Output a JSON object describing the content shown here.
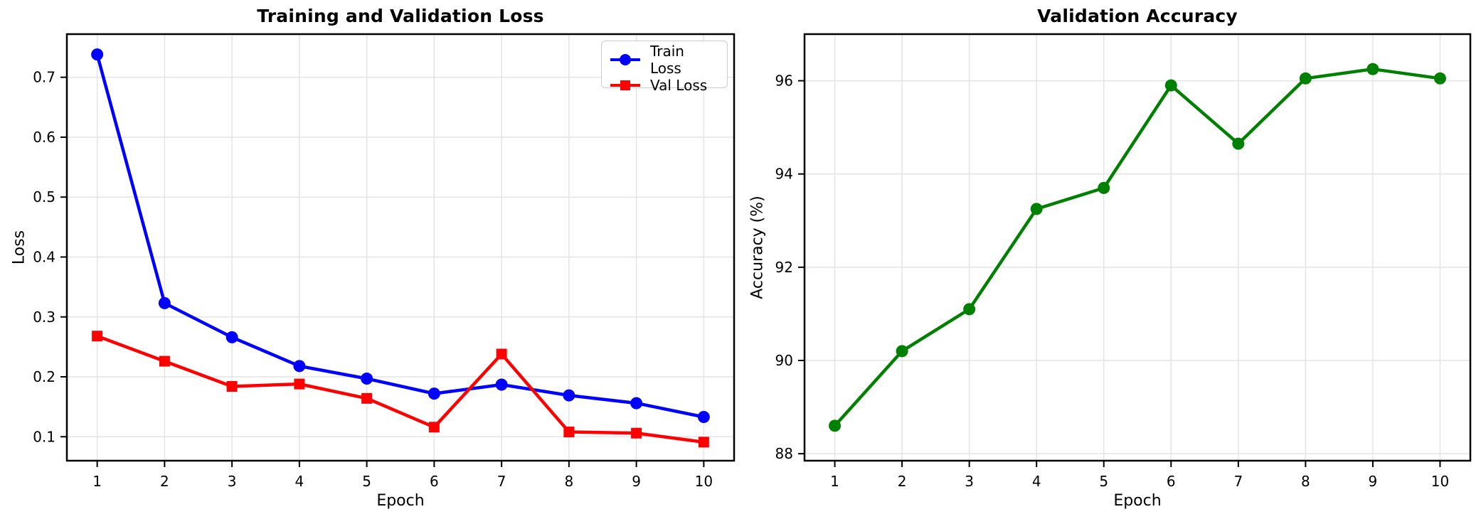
{
  "figure": {
    "background": "#ffffff",
    "spine_color": "#000000",
    "grid_color": "#e4e4e4",
    "tick_label_color": "#000000"
  },
  "legend": {
    "position": "upper right",
    "items": [
      {
        "label": "Train Loss",
        "color": "#0000ff",
        "marker": "circle"
      },
      {
        "label": "Val Loss",
        "color": "#ff0000",
        "marker": "square"
      }
    ]
  },
  "chart_data": [
    {
      "type": "line",
      "title": "Training and Validation Loss",
      "xlabel": "Epoch",
      "ylabel": "Loss",
      "x": [
        1,
        2,
        3,
        4,
        5,
        6,
        7,
        8,
        9,
        10
      ],
      "series": [
        {
          "name": "Train Loss",
          "color": "#0000ff",
          "marker": "circle",
          "values": [
            0.738,
            0.323,
            0.266,
            0.218,
            0.197,
            0.172,
            0.187,
            0.169,
            0.156,
            0.133
          ]
        },
        {
          "name": "Val Loss",
          "color": "#ff0000",
          "marker": "square",
          "values": [
            0.268,
            0.226,
            0.184,
            0.188,
            0.164,
            0.116,
            0.238,
            0.108,
            0.106,
            0.091
          ]
        }
      ],
      "xlim": [
        0.55,
        10.45
      ],
      "ylim": [
        0.06,
        0.772
      ],
      "xticks": [
        1,
        2,
        3,
        4,
        5,
        6,
        7,
        8,
        9,
        10
      ],
      "yticks": [
        0.1,
        0.2,
        0.3,
        0.4,
        0.5,
        0.6,
        0.7
      ],
      "ytick_decimals": 1,
      "grid": true,
      "legend": true
    },
    {
      "type": "line",
      "title": "Validation Accuracy",
      "xlabel": "Epoch",
      "ylabel": "Accuracy (%)",
      "x": [
        1,
        2,
        3,
        4,
        5,
        6,
        7,
        8,
        9,
        10
      ],
      "series": [
        {
          "name": "Val Accuracy",
          "color": "#008000",
          "marker": "circle",
          "values": [
            88.6,
            90.2,
            91.1,
            93.25,
            93.7,
            95.9,
            94.65,
            96.05,
            96.25,
            96.05
          ]
        }
      ],
      "xlim": [
        0.55,
        10.45
      ],
      "ylim": [
        87.85,
        97.0
      ],
      "xticks": [
        1,
        2,
        3,
        4,
        5,
        6,
        7,
        8,
        9,
        10
      ],
      "yticks": [
        88,
        90,
        92,
        94,
        96
      ],
      "ytick_decimals": 0,
      "grid": true,
      "legend": false
    }
  ]
}
